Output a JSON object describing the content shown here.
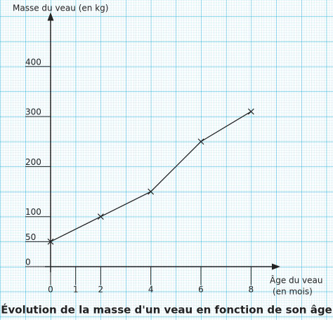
{
  "chart_data": {
    "type": "line",
    "title": "Évolution de la masse d'un veau en fonction de son âge",
    "y_label": "Masse du veau (en kg)",
    "x_label": "Âge du veau",
    "x_unit": "(en mois)",
    "x": [
      0,
      2,
      4,
      6,
      8
    ],
    "series": [
      {
        "color": "#222222",
        "values": [
          50,
          100,
          150,
          250,
          310
        ]
      }
    ],
    "xlim": [
      0,
      9
    ],
    "ylim": [
      0,
      500
    ],
    "xticks": [
      0,
      1,
      2,
      4,
      6,
      8
    ],
    "yticks": [
      0,
      50,
      100,
      200,
      300,
      400
    ],
    "grid": true
  }
}
